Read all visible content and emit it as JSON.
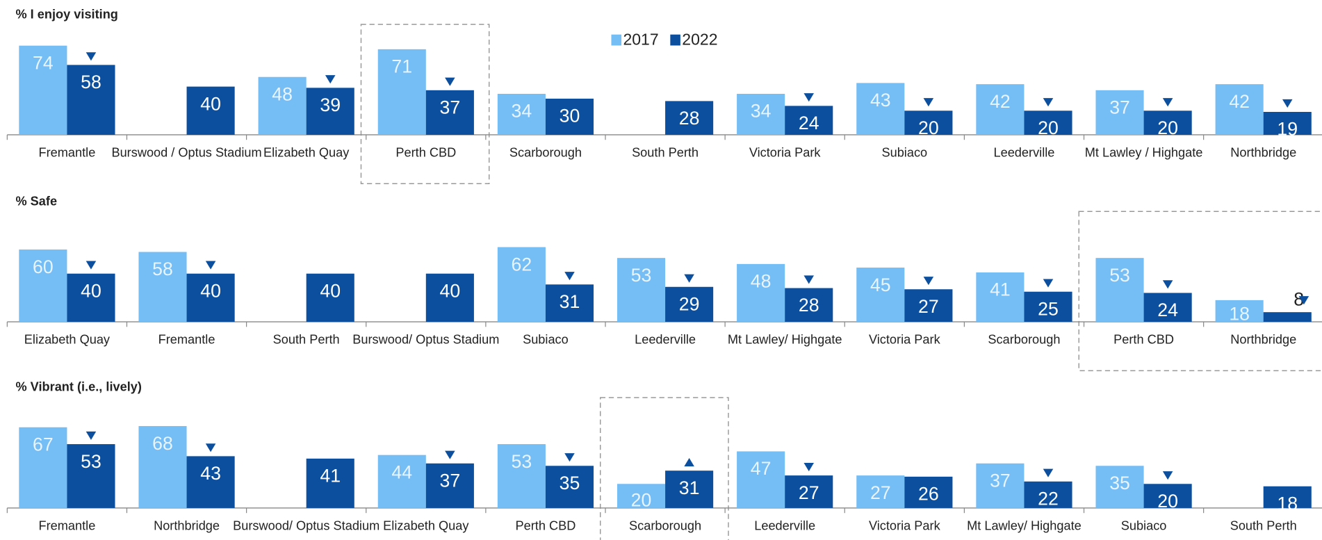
{
  "legend": [
    {
      "name": "2017",
      "color": "#75bdf5"
    },
    {
      "name": "2022",
      "color": "#0b4f9e"
    }
  ],
  "chart_data": [
    {
      "type": "bar",
      "title": "% I enjoy visiting",
      "ylim": [
        0,
        80
      ],
      "categories": [
        "Fremantle",
        "Burswood / Optus Stadium",
        "Elizabeth Quay",
        "Perth CBD",
        "Scarborough",
        "South Perth",
        "Victoria Park",
        "Subiaco",
        "Leederville",
        "Mt Lawley / Highgate",
        "Northbridge"
      ],
      "series": [
        {
          "name": "2017",
          "color": "#75bdf5",
          "values": [
            74,
            null,
            48,
            71,
            34,
            null,
            34,
            43,
            42,
            37,
            42
          ]
        },
        {
          "name": "2022",
          "color": "#0b4f9e",
          "values": [
            58,
            40,
            39,
            37,
            30,
            28,
            24,
            20,
            20,
            20,
            19
          ]
        }
      ],
      "change_markers": [
        "down",
        null,
        "down",
        "down",
        null,
        null,
        "down",
        "down",
        "down",
        "down",
        "down"
      ],
      "highlight": [
        3
      ]
    },
    {
      "type": "bar",
      "title": "% Safe",
      "ylim": [
        0,
        80
      ],
      "categories": [
        "Elizabeth Quay",
        "Fremantle",
        "South Perth",
        "Burswood/ Optus Stadium",
        "Subiaco",
        "Leederville",
        "Mt Lawley/ Highgate",
        "Victoria Park",
        "Scarborough",
        "Perth CBD",
        "Northbridge"
      ],
      "series": [
        {
          "name": "2017",
          "color": "#75bdf5",
          "values": [
            60,
            58,
            null,
            null,
            62,
            53,
            48,
            45,
            41,
            53,
            18
          ]
        },
        {
          "name": "2022",
          "color": "#0b4f9e",
          "values": [
            40,
            40,
            40,
            40,
            31,
            29,
            28,
            27,
            25,
            24,
            8
          ]
        }
      ],
      "change_markers": [
        "down",
        "down",
        null,
        null,
        "down",
        "down",
        "down",
        "down",
        "down",
        "down",
        "down"
      ],
      "highlight": [
        9,
        10
      ]
    },
    {
      "type": "bar",
      "title": "% Vibrant (i.e., lively)",
      "ylim": [
        0,
        80
      ],
      "categories": [
        "Fremantle",
        "Northbridge",
        "Burswood/ Optus Stadium",
        "Elizabeth Quay",
        "Perth CBD",
        "Scarborough",
        "Leederville",
        "Victoria Park",
        "Mt Lawley/ Highgate",
        "Subiaco",
        "South Perth"
      ],
      "series": [
        {
          "name": "2017",
          "color": "#75bdf5",
          "values": [
            67,
            68,
            null,
            44,
            53,
            20,
            47,
            27,
            37,
            35,
            null
          ]
        },
        {
          "name": "2022",
          "color": "#0b4f9e",
          "values": [
            53,
            43,
            41,
            37,
            35,
            31,
            27,
            26,
            22,
            20,
            18
          ]
        }
      ],
      "change_markers": [
        "down",
        "down",
        null,
        "down",
        "down",
        "up",
        "down",
        null,
        "down",
        "down",
        null
      ],
      "highlight": [
        5
      ]
    }
  ]
}
